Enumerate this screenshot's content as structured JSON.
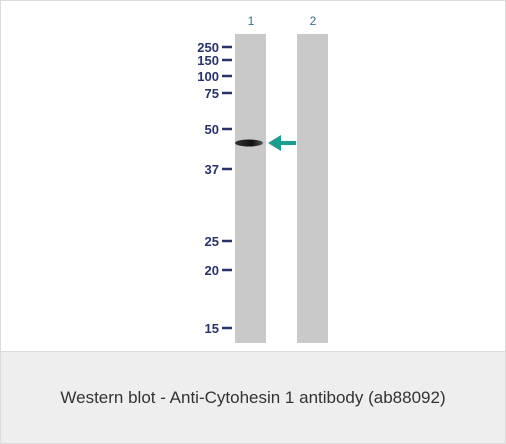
{
  "lanes": [
    "1",
    "2"
  ],
  "markers": [
    "250",
    "150",
    "100",
    "75",
    "50",
    "37",
    "25",
    "20",
    "15"
  ],
  "caption": "Western blot - Anti-Cytohesin 1 antibody (ab88092)"
}
